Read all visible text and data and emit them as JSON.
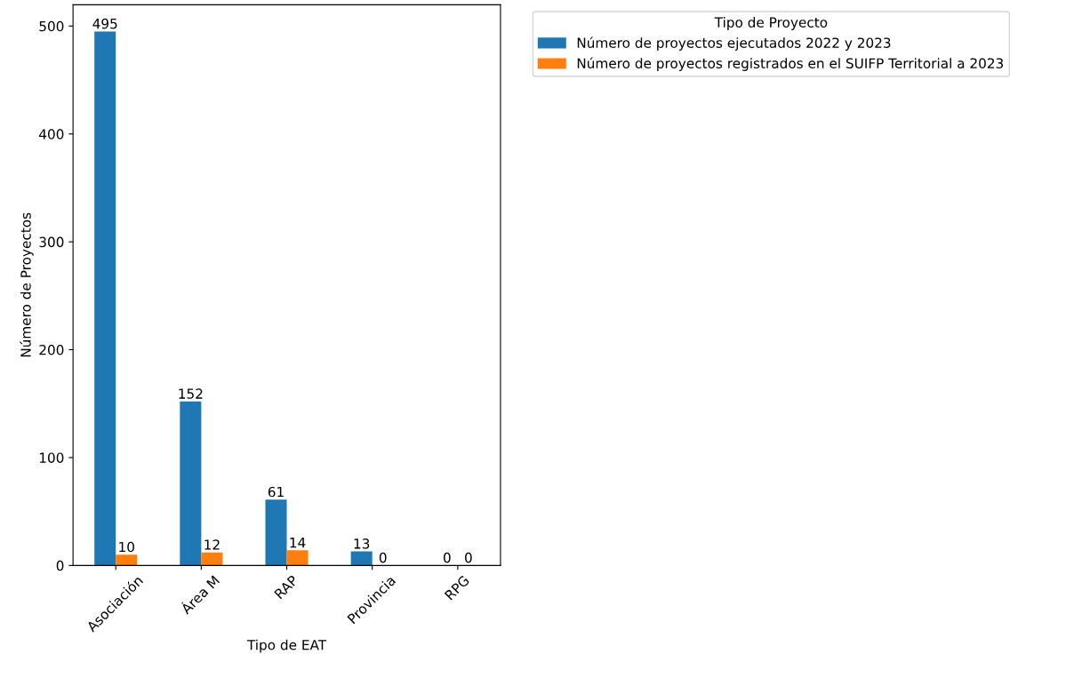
{
  "chart_data": {
    "type": "bar",
    "xlabel": "Tipo de EAT",
    "ylabel": "Número de Proyectos",
    "legend_title": "Tipo de Proyecto",
    "categories": [
      "Asociación",
      "Área M",
      "RAP",
      "Provincia",
      "RPG"
    ],
    "series": [
      {
        "name": "Número de proyectos ejecutados 2022 y 2023",
        "color": "#1f77b4",
        "values": [
          495,
          152,
          61,
          13,
          0
        ]
      },
      {
        "name": "Número de proyectos registrados en el SUIFP Territorial a 2023",
        "color": "#ff7f0e",
        "values": [
          10,
          12,
          14,
          0,
          0
        ]
      }
    ],
    "ylim": [
      0,
      519.75
    ],
    "yticks": [
      0,
      100,
      200,
      300,
      400,
      500
    ],
    "data_labels": true,
    "legend": "top right",
    "grid": false
  }
}
